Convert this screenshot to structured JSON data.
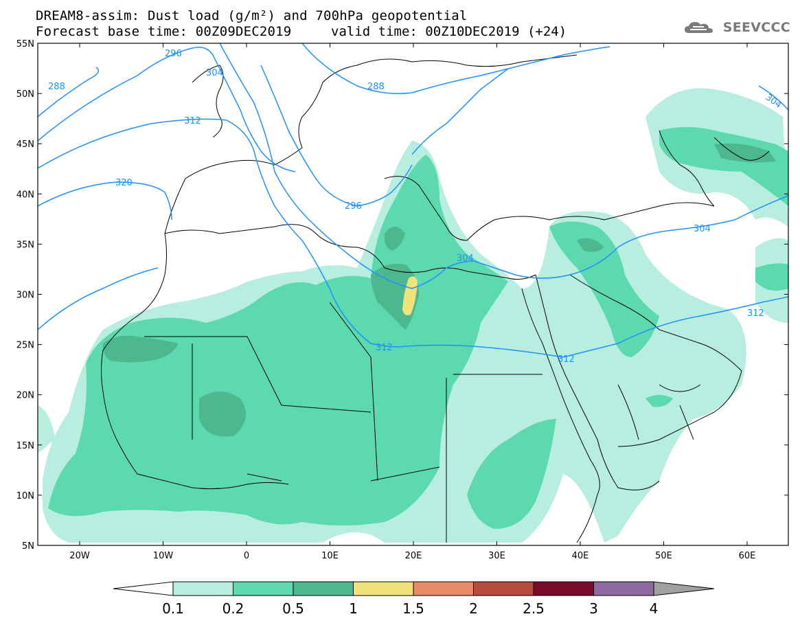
{
  "header": {
    "title_line1": "DREAM8-assim: Dust load (g/m²) and 700hPa geopotential",
    "title_line2_base": "Forecast base time: 00Z09DEC2019",
    "title_line2_valid": "valid time: 00Z10DEC2019 (+24)"
  },
  "logo": {
    "text": "SEEVCCC",
    "icon": "cloud-icon"
  },
  "map": {
    "lon_labels": [
      "20W",
      "10W",
      "0",
      "10E",
      "20E",
      "30E",
      "40E",
      "50E",
      "60E"
    ],
    "lat_labels": [
      "55N",
      "50N",
      "45N",
      "40N",
      "35N",
      "30N",
      "25N",
      "20N",
      "15N",
      "10N",
      "5N"
    ],
    "contour_labels": [
      "288",
      "296",
      "304",
      "288",
      "312",
      "320",
      "296",
      "304",
      "312",
      "312",
      "304",
      "312",
      "304"
    ],
    "colors": {
      "land_line": "#000000",
      "contour": "#1e90ff",
      "level_0_1": "#b8eee0",
      "level_0_2": "#5dd9b0",
      "level_0_5": "#4db890",
      "level_1": "#f1e27a"
    }
  },
  "colorbar": {
    "labels": [
      "0.1",
      "0.2",
      "0.5",
      "1",
      "1.5",
      "2",
      "2.5",
      "3",
      "4"
    ],
    "colors": [
      "#b8eee0",
      "#5dd9b0",
      "#4db890",
      "#f1e27a",
      "#e88a65",
      "#b84a3e",
      "#7a0a2a",
      "#8f6aa0"
    ],
    "below_color": "#ffffff",
    "above_color": "#a0a0a0"
  }
}
